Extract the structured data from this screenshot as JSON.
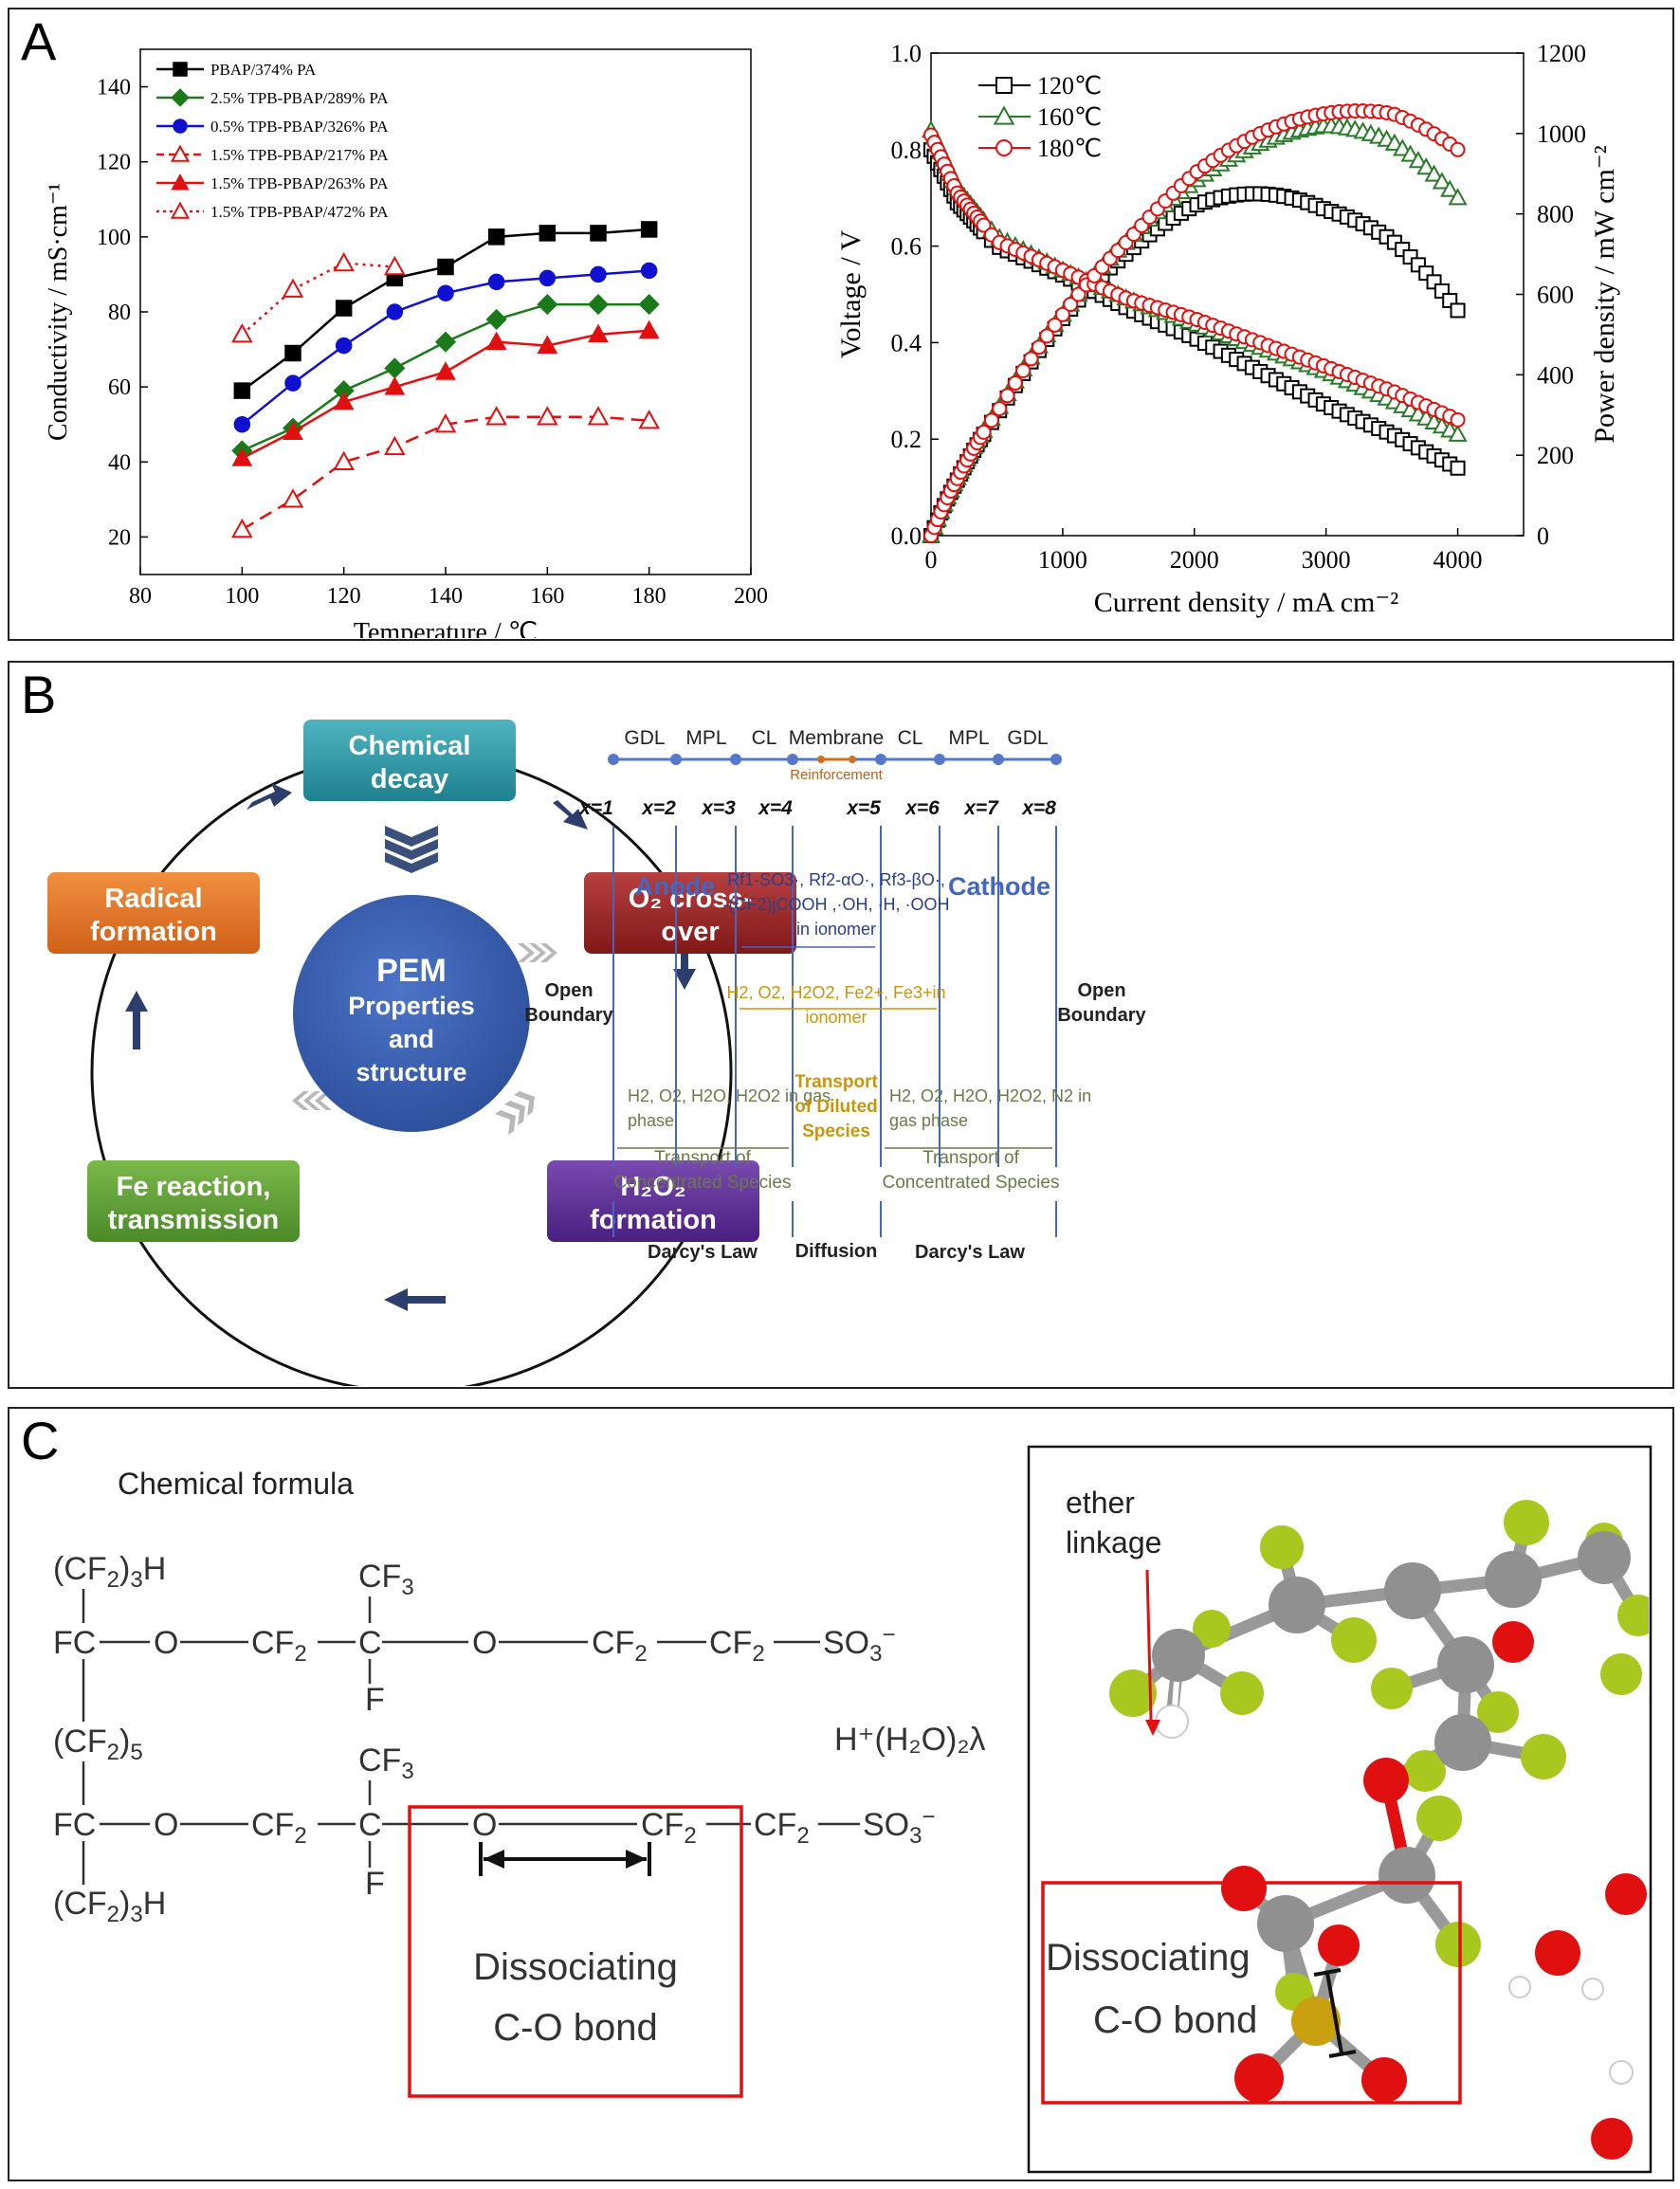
{
  "panels": {
    "a": "A",
    "b": "B",
    "c": "C"
  },
  "chart_data": [
    {
      "type": "line",
      "xlabel": "Temperature / ℃",
      "ylabel": "Conductivity / mS·cm⁻¹",
      "xlim": [
        80,
        200
      ],
      "ylim": [
        10,
        150
      ],
      "xticks": [
        80,
        100,
        120,
        140,
        160,
        180,
        200
      ],
      "yticks": [
        20,
        40,
        60,
        80,
        100,
        120,
        140
      ],
      "legend_position": "top-left",
      "series": [
        {
          "name": "PBAP/374% PA",
          "color": "#000000",
          "marker": "square-filled",
          "line": "solid",
          "x": [
            100,
            110,
            120,
            130,
            140,
            150,
            160,
            170,
            180
          ],
          "y": [
            59,
            69,
            81,
            89,
            92,
            100,
            101,
            101,
            102
          ]
        },
        {
          "name": "2.5% TPB-PBAP/289% PA",
          "color": "#1a7a1a",
          "marker": "diamond-filled",
          "line": "solid",
          "x": [
            100,
            110,
            120,
            130,
            140,
            150,
            160,
            170,
            180
          ],
          "y": [
            43,
            49,
            59,
            65,
            72,
            78,
            82,
            82,
            82
          ]
        },
        {
          "name": "0.5% TPB-PBAP/326% PA",
          "color": "#1010d0",
          "marker": "circle-filled",
          "line": "solid",
          "x": [
            100,
            110,
            120,
            130,
            140,
            150,
            160,
            170,
            180
          ],
          "y": [
            50,
            61,
            71,
            80,
            85,
            88,
            89,
            90,
            91
          ]
        },
        {
          "name": "1.5% TPB-PBAP/217% PA",
          "color": "#e01010",
          "marker": "triangle-open",
          "line": "dashed",
          "x": [
            100,
            110,
            120,
            130,
            140,
            150,
            160,
            170,
            180
          ],
          "y": [
            22,
            30,
            40,
            44,
            50,
            52,
            52,
            52,
            51
          ]
        },
        {
          "name": "1.5% TPB-PBAP/263% PA",
          "color": "#e01010",
          "marker": "triangle-filled",
          "line": "solid",
          "x": [
            100,
            110,
            120,
            130,
            140,
            150,
            160,
            170,
            180
          ],
          "y": [
            41,
            48,
            56,
            60,
            64,
            72,
            71,
            74,
            75
          ]
        },
        {
          "name": "1.5% TPB-PBAP/472% PA",
          "color": "#e01010",
          "marker": "triangle-open",
          "line": "dotted",
          "x": [
            100,
            110,
            120,
            130
          ],
          "y": [
            74,
            86,
            93,
            92
          ]
        }
      ]
    },
    {
      "type": "line",
      "xlabel": "Current density / mA cm⁻²",
      "ylabel": "Voltage / V",
      "ylabel_right": "Power density / mW cm⁻²",
      "xlim": [
        0,
        4500
      ],
      "ylim": [
        0,
        1.0
      ],
      "ylim_right": [
        0,
        1200
      ],
      "xticks": [
        0,
        1000,
        2000,
        3000,
        4000
      ],
      "yticks": [
        0.0,
        0.2,
        0.4,
        0.6,
        0.8,
        1.0
      ],
      "yticks_right": [
        0,
        200,
        400,
        600,
        800,
        1000,
        1200
      ],
      "legend_position": "top-left",
      "series": [
        {
          "name": "120℃",
          "color": "#000000",
          "marker": "square-open",
          "voltage_at": [
            [
              0,
              0.8
            ],
            [
              200,
              0.69
            ],
            [
              500,
              0.6
            ],
            [
              1000,
              0.54
            ],
            [
              1500,
              0.47
            ],
            [
              2000,
              0.41
            ],
            [
              2500,
              0.34
            ],
            [
              3000,
              0.27
            ],
            [
              3500,
              0.21
            ],
            [
              4000,
              0.14
            ]
          ]
        },
        {
          "name": "160℃",
          "color": "#2a7a2a",
          "marker": "triangle-open",
          "voltage_at": [
            [
              0,
              0.84
            ],
            [
              200,
              0.72
            ],
            [
              500,
              0.62
            ],
            [
              1000,
              0.55
            ],
            [
              1500,
              0.49
            ],
            [
              2000,
              0.44
            ],
            [
              2500,
              0.39
            ],
            [
              3000,
              0.34
            ],
            [
              3500,
              0.28
            ],
            [
              4000,
              0.21
            ]
          ]
        },
        {
          "name": "180℃",
          "color": "#e01010",
          "marker": "circle-open",
          "voltage_at": [
            [
              0,
              0.83
            ],
            [
              200,
              0.71
            ],
            [
              500,
              0.61
            ],
            [
              1000,
              0.55
            ],
            [
              1500,
              0.49
            ],
            [
              2000,
              0.45
            ],
            [
              2500,
              0.4
            ],
            [
              3000,
              0.35
            ],
            [
              3500,
              0.3
            ],
            [
              4000,
              0.24
            ]
          ]
        }
      ]
    }
  ],
  "panel_b": {
    "cycle": {
      "center": [
        "PEM",
        "Properties",
        "and",
        "structure"
      ],
      "chemical_decay": [
        "Chemical",
        "decay"
      ],
      "o2_crossover": [
        "O₂ cross-",
        "over"
      ],
      "h2o2_formation": [
        "H₂O₂",
        "formation"
      ],
      "fe_reaction": [
        "Fe reaction,",
        "transmission"
      ],
      "radical_formation": [
        "Radical",
        "formation"
      ]
    },
    "layers": [
      "GDL",
      "MPL",
      "CL",
      "Membrane",
      "CL",
      "MPL",
      "GDL"
    ],
    "reinforcement": "Reinforcement",
    "positions": [
      "x=1",
      "x=2",
      "x=3",
      "x=4",
      "x=5",
      "x=6",
      "x=7",
      "x=8"
    ],
    "anode": "Anode",
    "cathode": "Cathode",
    "open_boundary": [
      "Open",
      "Boundary"
    ],
    "radicals": [
      "Rf1-SO3·, Rf2-αO·, Rf3-βO·,",
      "-(CF2)jCOOH ,·OH, ·H, ·OOH",
      "in ionomer"
    ],
    "ionomer_species": [
      "H2, O2, H2O2, Fe2+, Fe3+in",
      "ionomer"
    ],
    "anode_gas": [
      "H2, O2, H2O, H2O2 in gas",
      "phase"
    ],
    "cathode_gas": [
      "H2, O2, H2O, H2O2, N2 in",
      "gas phase"
    ],
    "transport_diluted": [
      "Transport",
      "of Diluted",
      "Species"
    ],
    "transport_concentrated": [
      "Transport of",
      "Concentrated Species"
    ],
    "darcy": "Darcy's Law",
    "diffusion": "Diffusion"
  },
  "panel_c": {
    "title": "Chemical formula",
    "counter_ion": "H⁺(H₂O)₂λ",
    "dissociating": [
      "Dissociating",
      "C-O bond"
    ],
    "ether_linkage": [
      "ether",
      "linkage"
    ]
  },
  "colors": {
    "chemical_decay": "#2a9aa8",
    "o2_crossover": "#9b2222",
    "h2o2_formation": "#5c2d91",
    "fe_reaction": "#5a9a32",
    "radical_formation": "#e0782a",
    "pem_circle": "#3a5fb0",
    "arrow": "#2c3e6b",
    "anode_blue": "#4466c0",
    "species_gold": "#c8960a",
    "species_olive": "#6a7a48"
  }
}
